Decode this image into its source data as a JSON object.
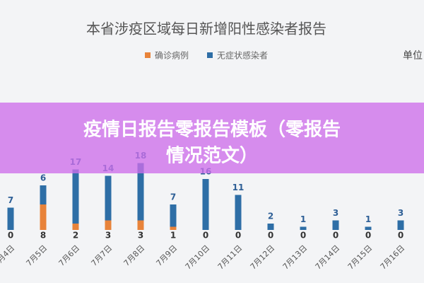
{
  "chart_data": {
    "type": "stacked-bar",
    "title": "本省涉疫区域每日新增阳性感染者报告",
    "unit": "单位",
    "categories": [
      "7月4日",
      "7月5日",
      "7月6日",
      "7月7日",
      "7月8日",
      "7月9日",
      "7月10日",
      "7月11日",
      "7月12日",
      "7月13日",
      "7月14日",
      "7月15日",
      "7月16日"
    ],
    "series": [
      {
        "name": "确诊病例",
        "color": "#e8833a",
        "values": [
          0,
          8,
          2,
          3,
          3,
          1,
          0,
          0,
          0,
          0,
          0,
          0,
          0
        ]
      },
      {
        "name": "无症状感染者",
        "color": "#2e6ea6",
        "values": [
          7,
          6,
          17,
          14,
          18,
          7,
          16,
          11,
          2,
          1,
          3,
          1,
          3
        ]
      }
    ]
  },
  "banner": {
    "lines": [
      "疫情日报告零报告模板（零报告",
      "情况范文）"
    ]
  }
}
